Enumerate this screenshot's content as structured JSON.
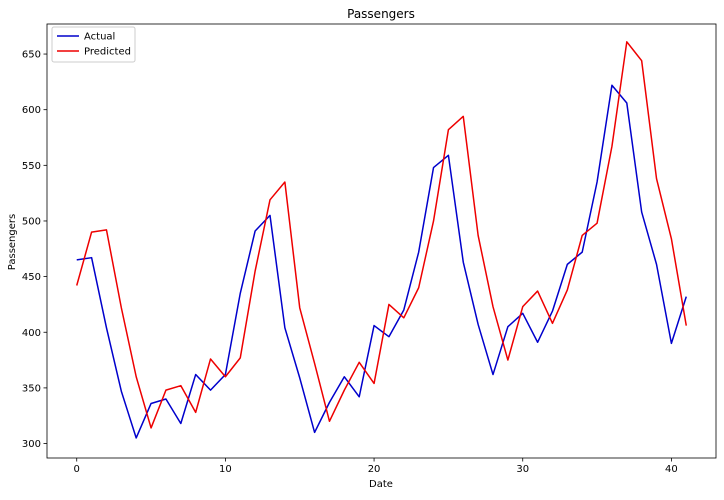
{
  "chart_data": {
    "type": "line",
    "title": "Passengers",
    "xlabel": "Date",
    "ylabel": "Passengers",
    "xlim": [
      -2,
      43
    ],
    "ylim": [
      287,
      677
    ],
    "xticks": [
      0,
      10,
      20,
      30,
      40
    ],
    "yticks": [
      300,
      350,
      400,
      450,
      500,
      550,
      600,
      650
    ],
    "x": [
      0,
      1,
      2,
      3,
      4,
      5,
      6,
      7,
      8,
      9,
      10,
      11,
      12,
      13,
      14,
      15,
      16,
      17,
      18,
      19,
      20,
      21,
      22,
      23,
      24,
      25,
      26,
      27,
      28,
      29,
      30,
      31,
      32,
      33,
      34,
      35,
      36,
      37,
      38,
      39,
      40,
      41
    ],
    "series": [
      {
        "name": "Actual",
        "color": "#0000cc",
        "values": [
          465,
          467,
          404,
          347,
          305,
          336,
          340,
          318,
          362,
          348,
          362,
          435,
          491,
          505,
          404,
          359,
          310,
          337,
          360,
          342,
          406,
          396,
          420,
          472,
          548,
          559,
          463,
          407,
          362,
          405,
          417,
          391,
          419,
          461,
          472,
          535,
          622,
          606,
          508,
          461,
          390,
          432
        ]
      },
      {
        "name": "Predicted",
        "color": "#ee0000",
        "values": [
          442,
          490,
          492,
          422,
          360,
          314,
          348,
          352,
          328,
          376,
          360,
          377,
          455,
          519,
          535,
          422,
          372,
          320,
          348,
          373,
          354,
          425,
          413,
          440,
          500,
          582,
          594,
          487,
          423,
          375,
          423,
          437,
          408,
          438,
          487,
          498,
          567,
          661,
          644,
          538,
          484,
          406
        ]
      }
    ],
    "legend": {
      "position": "top-left"
    },
    "grid": false
  }
}
